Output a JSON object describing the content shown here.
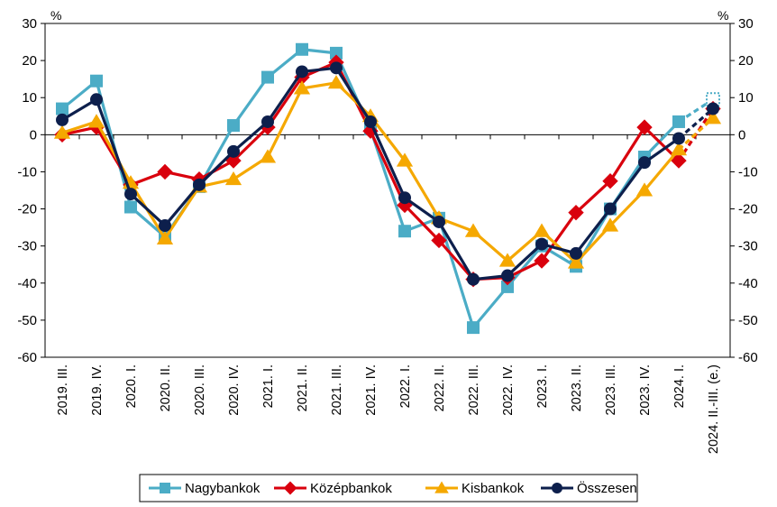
{
  "chart_data": {
    "type": "line",
    "title": "",
    "xlabel": "",
    "ylabel": "",
    "unit_left": "%",
    "unit_right": "%",
    "ylim": [
      -60,
      30
    ],
    "yticks": [
      -60,
      -50,
      -40,
      -30,
      -20,
      -10,
      0,
      10,
      20,
      30
    ],
    "grid": false,
    "legend_position": "bottom",
    "categories": [
      "2019. III.",
      "2019. IV.",
      "2020. I.",
      "2020. II.",
      "2020. III.",
      "2020. IV.",
      "2021. I.",
      "2021. II.",
      "2021. III.",
      "2021. IV.",
      "2022. I.",
      "2022. II.",
      "2022. III.",
      "2022. IV.",
      "2023. I.",
      "2023. II.",
      "2023. III.",
      "2023. IV.",
      "2024. I.",
      "2024. II.-III. (e.)"
    ],
    "estimate_from_index": 18,
    "series": [
      {
        "name": "Nagybankok",
        "color": "#4bacc6",
        "marker": "square",
        "values": [
          7,
          14.5,
          -19.5,
          -27.5,
          -14,
          2.5,
          15.5,
          23,
          22,
          1.5,
          -26,
          -22.5,
          -52,
          -41,
          -30,
          -35.5,
          -20,
          -6,
          3.5,
          9.5
        ]
      },
      {
        "name": "Középbankok",
        "color": "#d9000d",
        "marker": "diamond",
        "values": [
          0,
          2,
          -13.5,
          -10,
          -12,
          -7,
          2,
          15.5,
          19.5,
          1,
          -19,
          -28.5,
          -39,
          -38.5,
          -34,
          -21,
          -12.5,
          2,
          -7,
          7
        ]
      },
      {
        "name": "Kisbankok",
        "color": "#f5a800",
        "marker": "triangle",
        "values": [
          0.5,
          3.5,
          -13,
          -28,
          -14,
          -12,
          -6,
          12.5,
          14,
          5,
          -7,
          -22.5,
          -26,
          -34,
          -26,
          -34.5,
          -24.5,
          -15,
          -4,
          4.5
        ]
      },
      {
        "name": "Összesen",
        "color": "#0d1f4c",
        "marker": "circle",
        "values": [
          4,
          9.5,
          -16,
          -24.5,
          -13.5,
          -4.5,
          3.5,
          17,
          18,
          3.5,
          -17,
          -23.5,
          -39,
          -38,
          -29.5,
          -32,
          -20,
          -7.5,
          -1,
          7
        ]
      }
    ]
  }
}
